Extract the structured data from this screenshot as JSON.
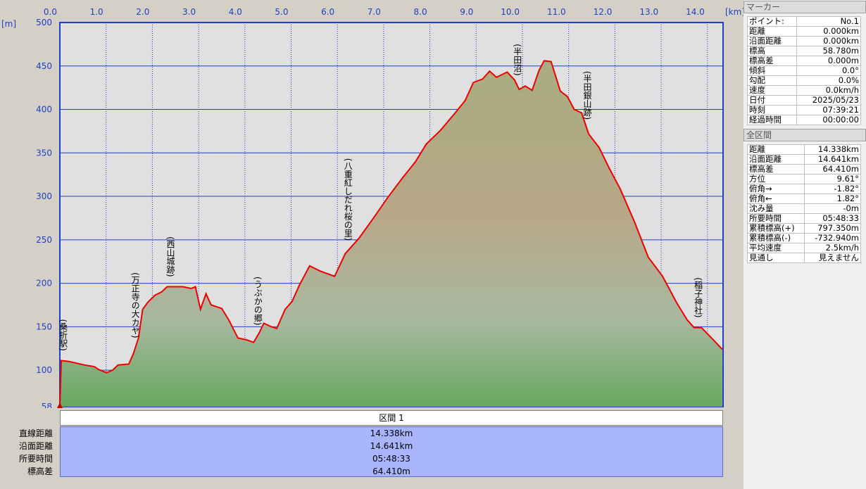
{
  "chart_data": {
    "type": "line",
    "x_label": "[km]",
    "y_label": "[m]",
    "xlim": [
      0,
      14.338
    ],
    "ylim": [
      58,
      500
    ],
    "xticks": [
      {
        "value": 0,
        "label": "0.0"
      },
      {
        "value": 1,
        "label": "1.0"
      },
      {
        "value": 2,
        "label": "2.0"
      },
      {
        "value": 3,
        "label": "3.0"
      },
      {
        "value": 4,
        "label": "4.0"
      },
      {
        "value": 5,
        "label": "5.0"
      },
      {
        "value": 6,
        "label": "6.0"
      },
      {
        "value": 7,
        "label": "7.0"
      },
      {
        "value": 8,
        "label": "8.0"
      },
      {
        "value": 9,
        "label": "9.0"
      },
      {
        "value": 10,
        "label": "10.0"
      },
      {
        "value": 11,
        "label": "11.0"
      },
      {
        "value": 12,
        "label": "12.0"
      },
      {
        "value": 13,
        "label": "13.0"
      },
      {
        "value": 14,
        "label": "14.0"
      }
    ],
    "yticks": [
      58,
      100,
      150,
      200,
      250,
      300,
      350,
      400,
      450,
      500
    ],
    "grid": true,
    "color": "#ee0000",
    "x": [
      0,
      0.03,
      0.2,
      0.53,
      0.75,
      0.83,
      1.01,
      1.14,
      1.26,
      1.49,
      1.59,
      1.7,
      1.79,
      1.9,
      2.05,
      2.2,
      2.32,
      2.51,
      2.66,
      2.84,
      2.93,
      3.04,
      3.16,
      3.27,
      3.5,
      3.65,
      3.85,
      4.03,
      4.19,
      4.31,
      4.41,
      4.57,
      4.69,
      4.87,
      5.02,
      5.18,
      5.4,
      5.63,
      5.94,
      6.17,
      6.47,
      6.78,
      7.08,
      7.39,
      7.69,
      7.92,
      8.23,
      8.53,
      8.76,
      8.94,
      9.14,
      9.29,
      9.44,
      9.67,
      9.83,
      9.93,
      10.06,
      10.21,
      10.36,
      10.47,
      10.62,
      10.82,
      10.97,
      11.12,
      11.28,
      11.43,
      11.66,
      11.88,
      12.11,
      12.42,
      12.72,
      13.03,
      13.33,
      13.56,
      13.71,
      13.87,
      14.09,
      14.32
    ],
    "values": [
      58.78,
      111,
      110,
      106,
      104,
      101,
      97,
      100,
      106,
      107,
      119,
      137,
      170,
      178,
      186,
      190,
      196,
      196,
      196,
      194,
      196,
      170,
      188,
      175,
      171,
      158,
      137,
      135,
      132,
      143,
      154,
      150,
      148,
      170,
      179,
      198,
      220,
      214,
      208,
      234,
      252,
      275,
      298,
      320,
      340,
      360,
      376,
      395,
      410,
      431,
      435,
      444,
      437,
      443,
      434,
      423,
      427,
      422,
      445,
      456,
      455,
      421,
      415,
      400,
      396,
      372,
      356,
      332,
      309,
      271,
      230,
      208,
      178,
      158,
      149,
      149,
      137,
      124
    ],
    "annotations": [
      {
        "text": "(桑折駅)",
        "x": 0.07
      },
      {
        "text": "(万正寺の大カヤ)",
        "x": 1.63
      },
      {
        "text": "(西山城跡)",
        "x": 2.39
      },
      {
        "text": "(うぶかの郷)",
        "x": 4.28
      },
      {
        "text": "(八重紅しだれ桜の里)",
        "x": 6.23
      },
      {
        "text": "(半田沼)",
        "x": 9.89
      },
      {
        "text": "(半田銀山跡)",
        "x": 11.4
      },
      {
        "text": "(稲子神社)",
        "x": 13.8
      }
    ]
  },
  "section": {
    "title": "区間 1",
    "rows": [
      [
        "直線距離",
        "14.338km"
      ],
      [
        "沿面距離",
        "14.641km"
      ],
      [
        "所要時間",
        "05:48:33"
      ],
      [
        "標高差",
        "64.410m"
      ]
    ]
  },
  "marker_panel": {
    "title": "マーカー",
    "rows": [
      [
        "ポイント:",
        "No.1"
      ],
      [
        "距離",
        "0.000km"
      ],
      [
        "沿面距離",
        "0.000km"
      ],
      [
        "標高",
        "58.780m"
      ],
      [
        "標高差",
        "0.000m"
      ],
      [
        "傾斜",
        "0.0°"
      ],
      [
        "勾配",
        "0.0%"
      ],
      [
        "速度",
        "0.0km/h"
      ],
      [
        "日付",
        "2025/05/23"
      ],
      [
        "時刻",
        "07:39:21"
      ],
      [
        "経過時間",
        "00:00:00"
      ]
    ]
  },
  "total_panel": {
    "title": "全区間",
    "rows": [
      [
        "距離",
        "14.338km"
      ],
      [
        "沿面距離",
        "14.641km"
      ],
      [
        "標高差",
        "64.410m"
      ],
      [
        "方位",
        "9.61°"
      ],
      [
        "俯角→",
        "-1.82°"
      ],
      [
        "俯角←",
        "1.82°"
      ],
      [
        "沈み量",
        "-0m"
      ],
      [
        "所要時間",
        "05:48:33"
      ],
      [
        "累積標高(+)",
        "797.350m"
      ],
      [
        "累積標高(-)",
        "-732.940m"
      ],
      [
        "平均速度",
        "2.5km/h"
      ],
      [
        "見通し",
        "見えません"
      ]
    ]
  }
}
